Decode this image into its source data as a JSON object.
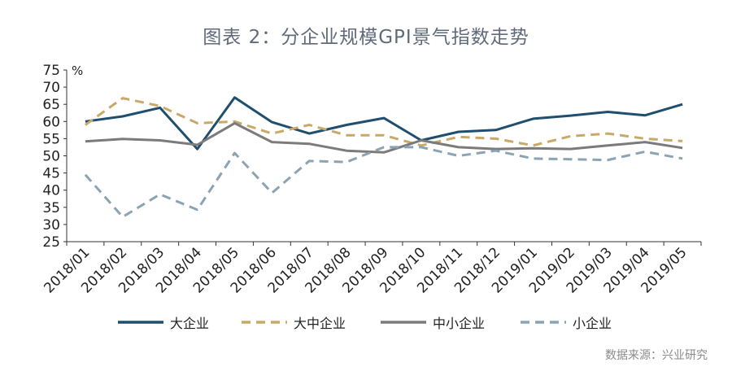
{
  "title": "图表 2：分企业规模GPI景气指数走势",
  "source": "数据来源：兴业研究",
  "chart_data": {
    "type": "line",
    "unit_label": "%",
    "categories": [
      "2018/01",
      "2018/02",
      "2018/03",
      "2018/04",
      "2018/05",
      "2018/06",
      "2018/07",
      "2018/08",
      "2018/09",
      "2018/10",
      "2018/11",
      "2018/12",
      "2019/01",
      "2019/02",
      "2019/03",
      "2019/04",
      "2019/05"
    ],
    "ylim": [
      25,
      75
    ],
    "yticks": [
      25,
      30,
      35,
      40,
      45,
      50,
      55,
      60,
      65,
      70,
      75
    ],
    "grid": false,
    "legend_position": "bottom",
    "series": [
      {
        "name": "大企业",
        "color": "#1f4e6e",
        "dash": "solid",
        "values": [
          60,
          61.5,
          64,
          52,
          67,
          59.8,
          56.5,
          59,
          61,
          54.5,
          57,
          57.5,
          60.8,
          61.7,
          62.8,
          61.8,
          65
        ]
      },
      {
        "name": "大中企业",
        "color": "#c8a968",
        "dash": "dashed",
        "values": [
          59,
          66.8,
          64.5,
          59.5,
          60,
          56.5,
          59,
          56,
          56,
          53,
          55.5,
          55,
          53,
          55.7,
          56.5,
          55,
          54.3
        ]
      },
      {
        "name": "中小企业",
        "color": "#7b7b7b",
        "dash": "solid",
        "values": [
          54.2,
          54.9,
          54.5,
          53.2,
          59.5,
          54,
          53.5,
          51.5,
          51,
          54.5,
          52.5,
          52,
          52.2,
          52,
          53,
          54,
          52.3
        ]
      },
      {
        "name": "小企业",
        "color": "#8ba4b4",
        "dash": "dashed",
        "values": [
          44.5,
          32.2,
          38.8,
          34.3,
          50.8,
          39.2,
          48.5,
          48.2,
          52.5,
          52.5,
          50,
          51.5,
          49.2,
          49,
          48.8,
          51.2,
          49.2
        ]
      }
    ]
  }
}
